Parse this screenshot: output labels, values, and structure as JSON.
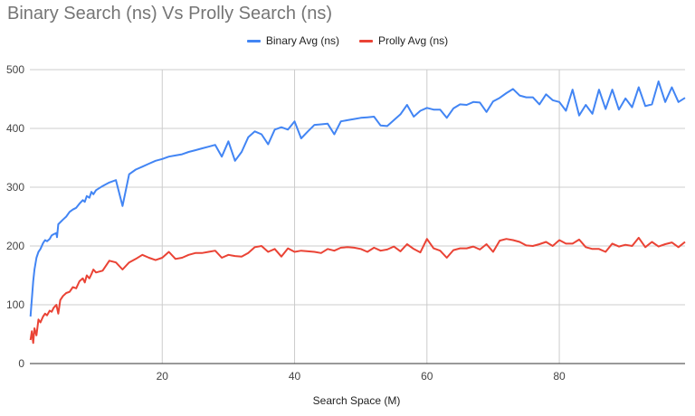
{
  "chart_data": {
    "type": "line",
    "title": "Binary Search (ns) Vs Prolly Search (ns)",
    "xlabel": "Search Space (M)",
    "ylabel": "",
    "xlim": [
      0,
      99
    ],
    "ylim": [
      0,
      500
    ],
    "xticks": [
      20,
      40,
      60,
      80
    ],
    "yticks": [
      0,
      100,
      200,
      300,
      400,
      500
    ],
    "grid": true,
    "legend_position": "top",
    "series": [
      {
        "name": "Binary Avg (ns)",
        "color": "#4285f4",
        "x": [
          0.1,
          0.3,
          0.5,
          0.7,
          1,
          1.3,
          1.6,
          2,
          2.3,
          2.6,
          3,
          3.3,
          3.6,
          4,
          4.1,
          4.3,
          5,
          5.5,
          6,
          6.5,
          7,
          7.5,
          8,
          8.3,
          8.6,
          9,
          9.3,
          9.6,
          10,
          11,
          12,
          13,
          14,
          15,
          16,
          17,
          18,
          19,
          20,
          21,
          22,
          23,
          24,
          25,
          26,
          27,
          28,
          29,
          30,
          31,
          32,
          33,
          34,
          35,
          36,
          37,
          38,
          39,
          40,
          41,
          42,
          43,
          44,
          45,
          46,
          47,
          48,
          49,
          50,
          51,
          52,
          53,
          54,
          55,
          56,
          57,
          58,
          59,
          60,
          61,
          62,
          63,
          64,
          65,
          66,
          67,
          68,
          69,
          70,
          71,
          72,
          73,
          74,
          75,
          76,
          77,
          78,
          79,
          80,
          81,
          82,
          83,
          84,
          85,
          86,
          87,
          88,
          89,
          90,
          91,
          92,
          93,
          94,
          95,
          96,
          97,
          98,
          99
        ],
        "y": [
          80,
          110,
          140,
          160,
          180,
          190,
          195,
          205,
          210,
          208,
          212,
          218,
          220,
          222,
          215,
          237,
          245,
          250,
          258,
          262,
          265,
          272,
          278,
          275,
          285,
          282,
          292,
          288,
          295,
          302,
          308,
          312,
          268,
          322,
          330,
          335,
          340,
          345,
          348,
          352,
          354,
          356,
          360,
          363,
          366,
          369,
          372,
          352,
          378,
          345,
          360,
          385,
          395,
          390,
          373,
          398,
          402,
          398,
          412,
          383,
          395,
          406,
          407,
          408,
          390,
          412,
          414,
          416,
          418,
          419,
          420,
          405,
          404,
          414,
          424,
          440,
          420,
          430,
          435,
          432,
          432,
          418,
          434,
          441,
          440,
          445,
          444,
          428,
          446,
          452,
          460,
          467,
          456,
          453,
          453,
          441,
          458,
          448,
          445,
          430,
          466,
          422,
          440,
          425,
          466,
          433,
          466,
          432,
          451,
          436,
          470,
          438,
          441,
          480,
          445,
          470,
          445,
          452
        ]
      },
      {
        "name": "Prolly Avg (ns)",
        "color": "#ea4335",
        "x": [
          0.1,
          0.3,
          0.5,
          0.7,
          1,
          1.3,
          1.6,
          2,
          2.3,
          2.6,
          3,
          3.3,
          3.6,
          4,
          4.3,
          4.6,
          5,
          5.5,
          6,
          6.5,
          7,
          7.5,
          8,
          8.3,
          8.6,
          9,
          9.3,
          9.6,
          10,
          11,
          12,
          13,
          14,
          15,
          16,
          17,
          18,
          19,
          20,
          21,
          22,
          23,
          24,
          25,
          26,
          27,
          28,
          29,
          30,
          31,
          32,
          33,
          34,
          35,
          36,
          37,
          38,
          39,
          40,
          41,
          42,
          43,
          44,
          45,
          46,
          47,
          48,
          49,
          50,
          51,
          52,
          53,
          54,
          55,
          56,
          57,
          58,
          59,
          60,
          61,
          62,
          63,
          64,
          65,
          66,
          67,
          68,
          69,
          70,
          71,
          72,
          73,
          74,
          75,
          76,
          77,
          78,
          79,
          80,
          81,
          82,
          83,
          84,
          85,
          86,
          87,
          88,
          89,
          90,
          91,
          92,
          93,
          94,
          95,
          96,
          97,
          98,
          99
        ],
        "y": [
          40,
          55,
          35,
          60,
          48,
          75,
          70,
          80,
          85,
          82,
          90,
          88,
          95,
          100,
          85,
          108,
          115,
          120,
          122,
          130,
          128,
          140,
          145,
          138,
          150,
          145,
          152,
          160,
          155,
          158,
          175,
          172,
          160,
          172,
          178,
          185,
          180,
          176,
          180,
          190,
          178,
          180,
          185,
          188,
          188,
          190,
          192,
          180,
          185,
          183,
          182,
          188,
          198,
          200,
          190,
          195,
          182,
          196,
          190,
          192,
          191,
          190,
          188,
          195,
          192,
          197,
          198,
          197,
          195,
          190,
          197,
          192,
          194,
          199,
          191,
          203,
          195,
          189,
          212,
          196,
          192,
          180,
          193,
          196,
          196,
          199,
          194,
          203,
          190,
          209,
          212,
          210,
          207,
          201,
          200,
          203,
          207,
          200,
          210,
          204,
          204,
          211,
          198,
          195,
          195,
          190,
          204,
          199,
          202,
          200,
          214,
          198,
          207,
          199,
          203,
          206,
          198,
          207
        ]
      }
    ]
  }
}
